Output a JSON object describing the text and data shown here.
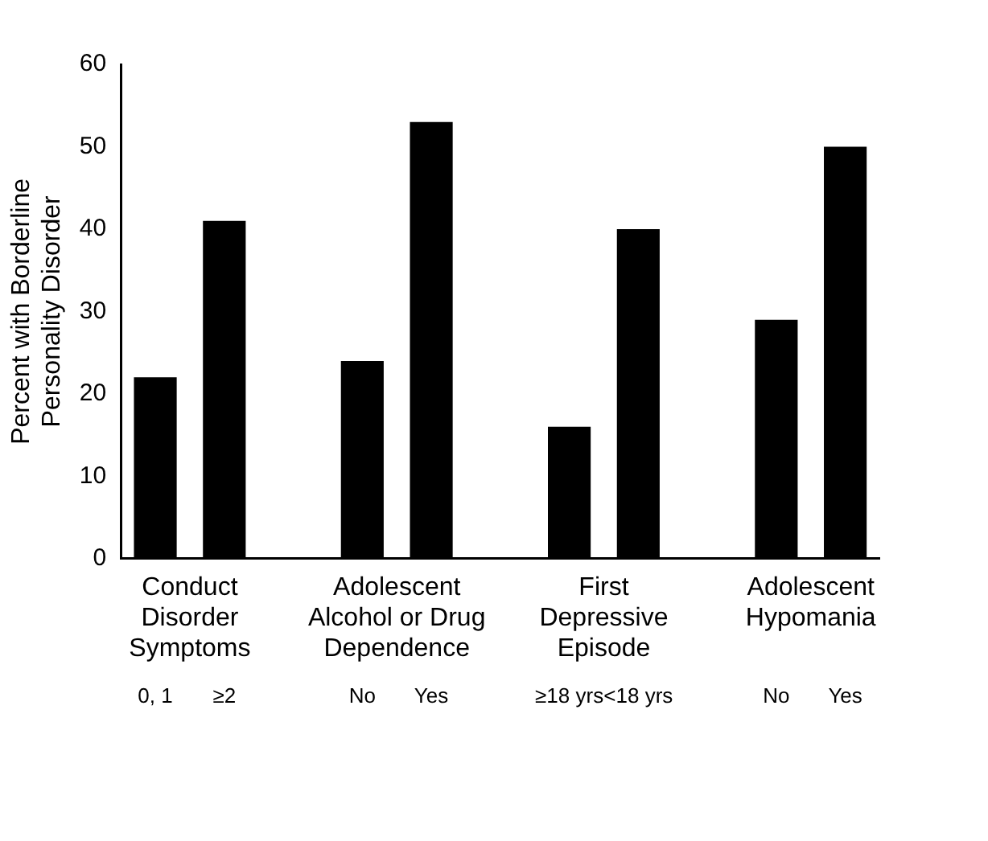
{
  "chart_data": {
    "type": "bar",
    "ylabel": "Percent with Borderline\nPersonality Disorder",
    "categories": [
      "0, 1",
      "≥2",
      null,
      "No",
      "Yes",
      null,
      "≥18 yrs",
      "<18 yrs",
      null,
      "No",
      "Yes"
    ],
    "values": [
      22,
      41,
      null,
      24,
      53,
      null,
      16,
      40,
      null,
      29,
      50
    ],
    "color": "#000000",
    "ylim": [
      0,
      60
    ],
    "yticks": [
      0,
      10,
      20,
      30,
      40,
      50,
      60
    ],
    "grid": false,
    "legend": false,
    "annotations": [
      "Conduct\nDisorder\nSymptoms",
      "Adolescent\nAlcohol or Drug\nDependence",
      "First\nDepressive\nEpisode",
      "Adolescent\nHypomania"
    ]
  }
}
